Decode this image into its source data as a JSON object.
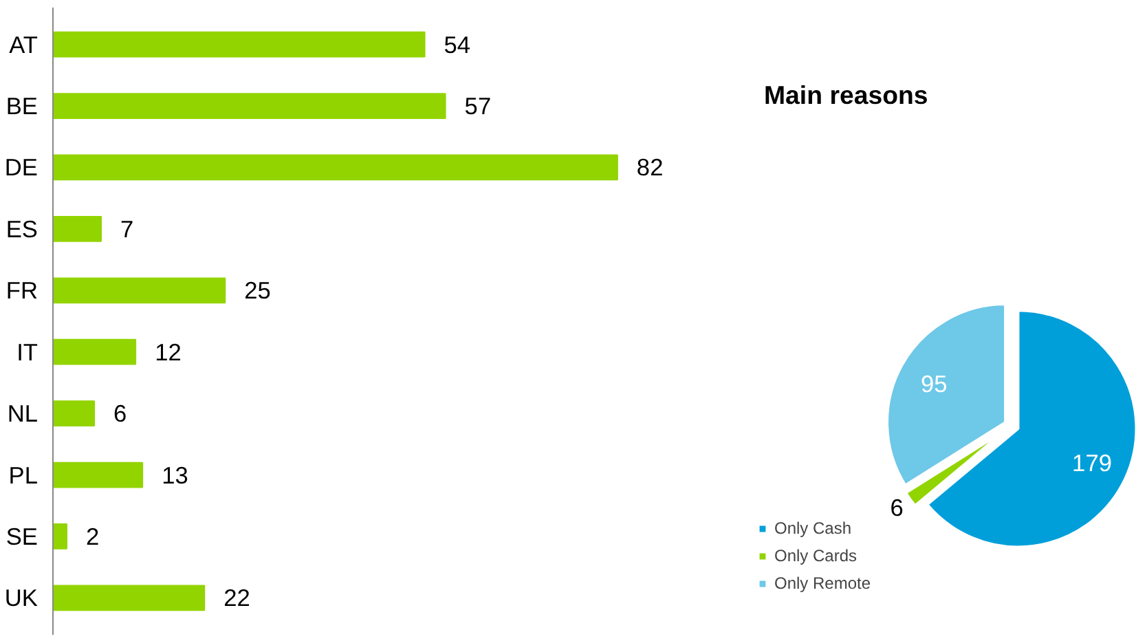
{
  "chart_data": [
    {
      "type": "bar",
      "orientation": "horizontal",
      "categories": [
        "AT",
        "BE",
        "DE",
        "ES",
        "FR",
        "IT",
        "NL",
        "PL",
        "SE",
        "UK"
      ],
      "values": [
        54,
        57,
        82,
        7,
        25,
        12,
        6,
        13,
        2,
        22
      ],
      "color": "#92d400",
      "data_labels": true
    },
    {
      "type": "pie",
      "title": "Main reasons",
      "categories": [
        "Only Cash",
        "Only Cards",
        "Only Remote"
      ],
      "values": [
        179,
        6,
        95
      ],
      "colors": [
        "#009fda",
        "#92d400",
        "#6ec8e8"
      ],
      "data_labels": true,
      "legend": "bottom left"
    }
  ]
}
